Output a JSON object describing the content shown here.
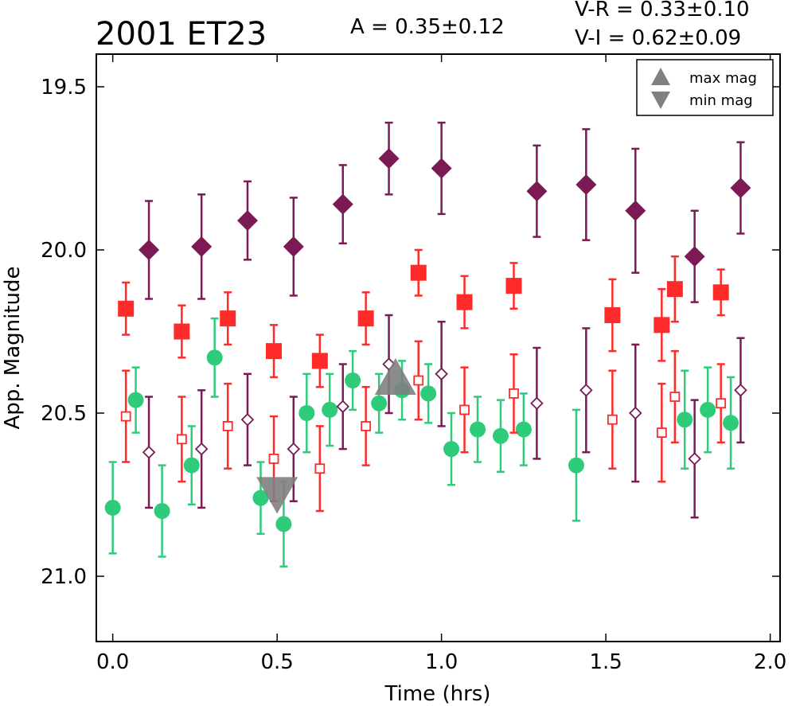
{
  "chart_data": {
    "type": "scatter",
    "title": "2001 ET23",
    "amplitude_text": "A  = 0.35±0.12",
    "color_text_1": "V-R = 0.33±0.10",
    "color_text_2": "V-I  = 0.62±0.09",
    "xlabel": "Time (hrs)",
    "ylabel": "App. Magnitude",
    "xlim": [
      -0.05,
      2.03
    ],
    "ylim": [
      21.2,
      19.4
    ],
    "y_inverted": true,
    "x_ticks": [
      0.0,
      0.5,
      1.0,
      1.5,
      2.0
    ],
    "x_tick_labels": [
      "0.0",
      "0.5",
      "1.0",
      "1.5",
      "2.0"
    ],
    "y_ticks": [
      19.5,
      20.0,
      20.5,
      21.0
    ],
    "y_tick_labels": [
      "19.5",
      "20.0",
      "20.5",
      "21.0"
    ],
    "grid": false,
    "legend_position": "top-right",
    "legend": [
      {
        "marker": "triangle-up",
        "label": "max mag",
        "color": "#808080"
      },
      {
        "marker": "triangle-down",
        "label": "min mag",
        "color": "#808080"
      }
    ],
    "colors": {
      "green": "#2ecc7a",
      "red": "#ff2a2a",
      "purple": "#7b1a55",
      "gray": "#808080"
    },
    "series": [
      {
        "marker": "circle-filled",
        "color": "#2ecc7a",
        "points": [
          {
            "x": 0.0,
            "y": 20.79,
            "err": 0.14
          },
          {
            "x": 0.07,
            "y": 20.46,
            "err": 0.1
          },
          {
            "x": 0.15,
            "y": 20.8,
            "err": 0.14
          },
          {
            "x": 0.24,
            "y": 20.66,
            "err": 0.12
          },
          {
            "x": 0.31,
            "y": 20.33,
            "err": 0.12
          },
          {
            "x": 0.45,
            "y": 20.76,
            "err": 0.11
          },
          {
            "x": 0.52,
            "y": 20.84,
            "err": 0.13
          },
          {
            "x": 0.59,
            "y": 20.5,
            "err": 0.12
          },
          {
            "x": 0.66,
            "y": 20.49,
            "err": 0.11
          },
          {
            "x": 0.73,
            "y": 20.4,
            "err": 0.09
          },
          {
            "x": 0.81,
            "y": 20.47,
            "err": 0.09
          },
          {
            "x": 0.88,
            "y": 20.43,
            "err": 0.09
          },
          {
            "x": 0.96,
            "y": 20.44,
            "err": 0.09
          },
          {
            "x": 1.03,
            "y": 20.61,
            "err": 0.11
          },
          {
            "x": 1.11,
            "y": 20.55,
            "err": 0.1
          },
          {
            "x": 1.18,
            "y": 20.57,
            "err": 0.11
          },
          {
            "x": 1.25,
            "y": 20.55,
            "err": 0.11
          },
          {
            "x": 1.41,
            "y": 20.66,
            "err": 0.17
          },
          {
            "x": 1.74,
            "y": 20.52,
            "err": 0.15
          },
          {
            "x": 1.81,
            "y": 20.49,
            "err": 0.13
          },
          {
            "x": 1.88,
            "y": 20.53,
            "err": 0.14
          }
        ]
      },
      {
        "marker": "square-filled",
        "color": "#ff2a2a",
        "points": [
          {
            "x": 0.04,
            "y": 20.18,
            "err": 0.08
          },
          {
            "x": 0.21,
            "y": 20.25,
            "err": 0.08
          },
          {
            "x": 0.35,
            "y": 20.21,
            "err": 0.08
          },
          {
            "x": 0.49,
            "y": 20.31,
            "err": 0.08
          },
          {
            "x": 0.63,
            "y": 20.34,
            "err": 0.08
          },
          {
            "x": 0.77,
            "y": 20.21,
            "err": 0.08
          },
          {
            "x": 0.93,
            "y": 20.07,
            "err": 0.07
          },
          {
            "x": 1.07,
            "y": 20.16,
            "err": 0.08
          },
          {
            "x": 1.22,
            "y": 20.11,
            "err": 0.07
          },
          {
            "x": 1.52,
            "y": 20.2,
            "err": 0.11
          },
          {
            "x": 1.67,
            "y": 20.23,
            "err": 0.11
          },
          {
            "x": 1.71,
            "y": 20.12,
            "err": 0.1
          },
          {
            "x": 1.85,
            "y": 20.13,
            "err": 0.07
          }
        ]
      },
      {
        "marker": "square-open",
        "color": "#ff2a2a",
        "points": [
          {
            "x": 0.04,
            "y": 20.51,
            "err": 0.14
          },
          {
            "x": 0.21,
            "y": 20.58,
            "err": 0.13
          },
          {
            "x": 0.35,
            "y": 20.54,
            "err": 0.13
          },
          {
            "x": 0.49,
            "y": 20.64,
            "err": 0.13
          },
          {
            "x": 0.63,
            "y": 20.67,
            "err": 0.13
          },
          {
            "x": 0.77,
            "y": 20.54,
            "err": 0.12
          },
          {
            "x": 0.93,
            "y": 20.4,
            "err": 0.12
          },
          {
            "x": 1.07,
            "y": 20.49,
            "err": 0.13
          },
          {
            "x": 1.22,
            "y": 20.44,
            "err": 0.12
          },
          {
            "x": 1.52,
            "y": 20.52,
            "err": 0.15
          },
          {
            "x": 1.67,
            "y": 20.56,
            "err": 0.15
          },
          {
            "x": 1.71,
            "y": 20.45,
            "err": 0.14
          },
          {
            "x": 1.85,
            "y": 20.47,
            "err": 0.12
          }
        ]
      },
      {
        "marker": "diamond-filled",
        "color": "#7b1a55",
        "points": [
          {
            "x": 0.11,
            "y": 20.0,
            "err": 0.15
          },
          {
            "x": 0.27,
            "y": 19.99,
            "err": 0.16
          },
          {
            "x": 0.41,
            "y": 19.91,
            "err": 0.12
          },
          {
            "x": 0.55,
            "y": 19.99,
            "err": 0.15
          },
          {
            "x": 0.7,
            "y": 19.86,
            "err": 0.12
          },
          {
            "x": 0.84,
            "y": 19.72,
            "err": 0.11
          },
          {
            "x": 1.0,
            "y": 19.75,
            "err": 0.14
          },
          {
            "x": 1.29,
            "y": 19.82,
            "err": 0.14
          },
          {
            "x": 1.44,
            "y": 19.8,
            "err": 0.17
          },
          {
            "x": 1.59,
            "y": 19.88,
            "err": 0.19
          },
          {
            "x": 1.77,
            "y": 20.02,
            "err": 0.14
          },
          {
            "x": 1.91,
            "y": 19.81,
            "err": 0.14
          }
        ]
      },
      {
        "marker": "diamond-open",
        "color": "#7b1a55",
        "points": [
          {
            "x": 0.11,
            "y": 20.62,
            "err": 0.17
          },
          {
            "x": 0.27,
            "y": 20.61,
            "err": 0.18
          },
          {
            "x": 0.41,
            "y": 20.52,
            "err": 0.14
          },
          {
            "x": 0.55,
            "y": 20.61,
            "err": 0.16
          },
          {
            "x": 0.7,
            "y": 20.48,
            "err": 0.13
          },
          {
            "x": 0.84,
            "y": 20.35,
            "err": 0.15
          },
          {
            "x": 1.0,
            "y": 20.38,
            "err": 0.16
          },
          {
            "x": 1.29,
            "y": 20.47,
            "err": 0.17
          },
          {
            "x": 1.44,
            "y": 20.43,
            "err": 0.19
          },
          {
            "x": 1.59,
            "y": 20.5,
            "err": 0.21
          },
          {
            "x": 1.77,
            "y": 20.64,
            "err": 0.18
          },
          {
            "x": 1.91,
            "y": 20.43,
            "err": 0.16
          }
        ]
      }
    ],
    "extrema": [
      {
        "marker": "triangle-down",
        "label": "min mag",
        "x": 0.5,
        "y": 20.74,
        "color": "#808080"
      },
      {
        "marker": "triangle-up",
        "label": "max mag",
        "x": 0.86,
        "y": 20.4,
        "color": "#808080"
      }
    ]
  }
}
